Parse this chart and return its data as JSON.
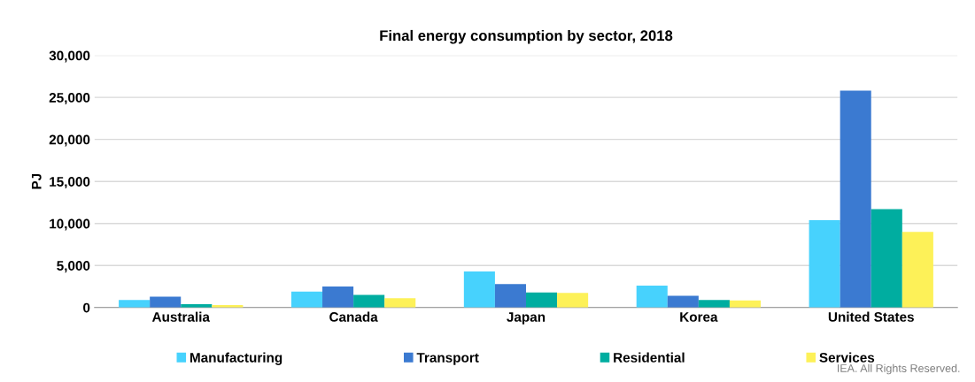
{
  "chart_data": {
    "type": "bar",
    "title": "Final energy consumption by sector, 2018",
    "ylabel": "PJ",
    "categories": [
      "Australia",
      "Canada",
      "Japan",
      "Korea",
      "United States"
    ],
    "series": [
      {
        "name": "Manufacturing",
        "color": "#47d2fd",
        "values": [
          900,
          1900,
          4300,
          2600,
          10400
        ]
      },
      {
        "name": "Transport",
        "color": "#3b7ad1",
        "values": [
          1300,
          2500,
          2800,
          1400,
          25800
        ]
      },
      {
        "name": "Residential",
        "color": "#00ada0",
        "values": [
          400,
          1500,
          1800,
          900,
          11700
        ]
      },
      {
        "name": "Services",
        "color": "#fdf158",
        "values": [
          300,
          1100,
          1750,
          850,
          9000
        ]
      }
    ],
    "ylim": [
      0,
      30000
    ],
    "yticks": [
      {
        "value": 0,
        "label": "0"
      },
      {
        "value": 5000,
        "label": "5,000"
      },
      {
        "value": 10000,
        "label": "10,000"
      },
      {
        "value": 15000,
        "label": "15,000"
      },
      {
        "value": 20000,
        "label": "20,000"
      },
      {
        "value": 25000,
        "label": "25,000"
      },
      {
        "value": 30000,
        "label": "30,000"
      }
    ],
    "grid": "y",
    "legend": "bottom",
    "annotations": [
      "IEA. All Rights Reserved."
    ]
  }
}
